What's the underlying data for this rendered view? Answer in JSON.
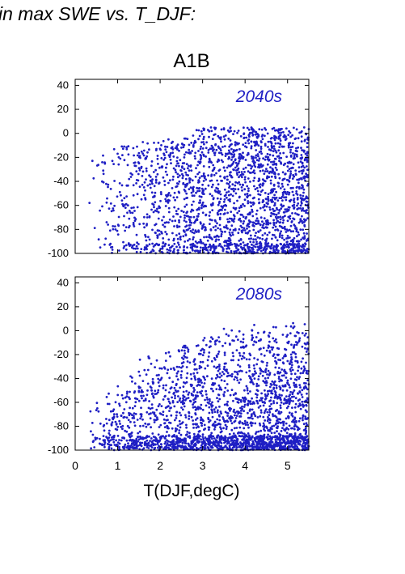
{
  "figure": {
    "heading": "in max SWE vs. T_DJF:",
    "scenario": "A1B",
    "xlabel": "T(DJF,degC)",
    "point_color": "#1f1fc4"
  },
  "chart_data": [
    {
      "type": "scatter",
      "panel_label": "2040s",
      "title": "A1B",
      "xlim": [
        0,
        5.5
      ],
      "ylim": [
        -100,
        45
      ],
      "yticks": [
        40,
        20,
        0,
        -20,
        -40,
        -60,
        -80,
        -100
      ],
      "xticks": [
        0,
        1,
        2,
        3,
        4,
        5
      ],
      "xlabel": "",
      "grid": false,
      "series": [
        {
          "approx_points": 2200
        }
      ]
    },
    {
      "type": "scatter",
      "panel_label": "2080s",
      "xlim": [
        0,
        5.5
      ],
      "ylim": [
        -100,
        45
      ],
      "yticks": [
        40,
        20,
        0,
        -20,
        -40,
        -60,
        -80,
        -100
      ],
      "xticks": [
        0,
        1,
        2,
        3,
        4,
        5
      ],
      "xlabel": "T(DJF,degC)",
      "grid": false,
      "series": [
        {
          "approx_points": 2400
        }
      ]
    }
  ]
}
